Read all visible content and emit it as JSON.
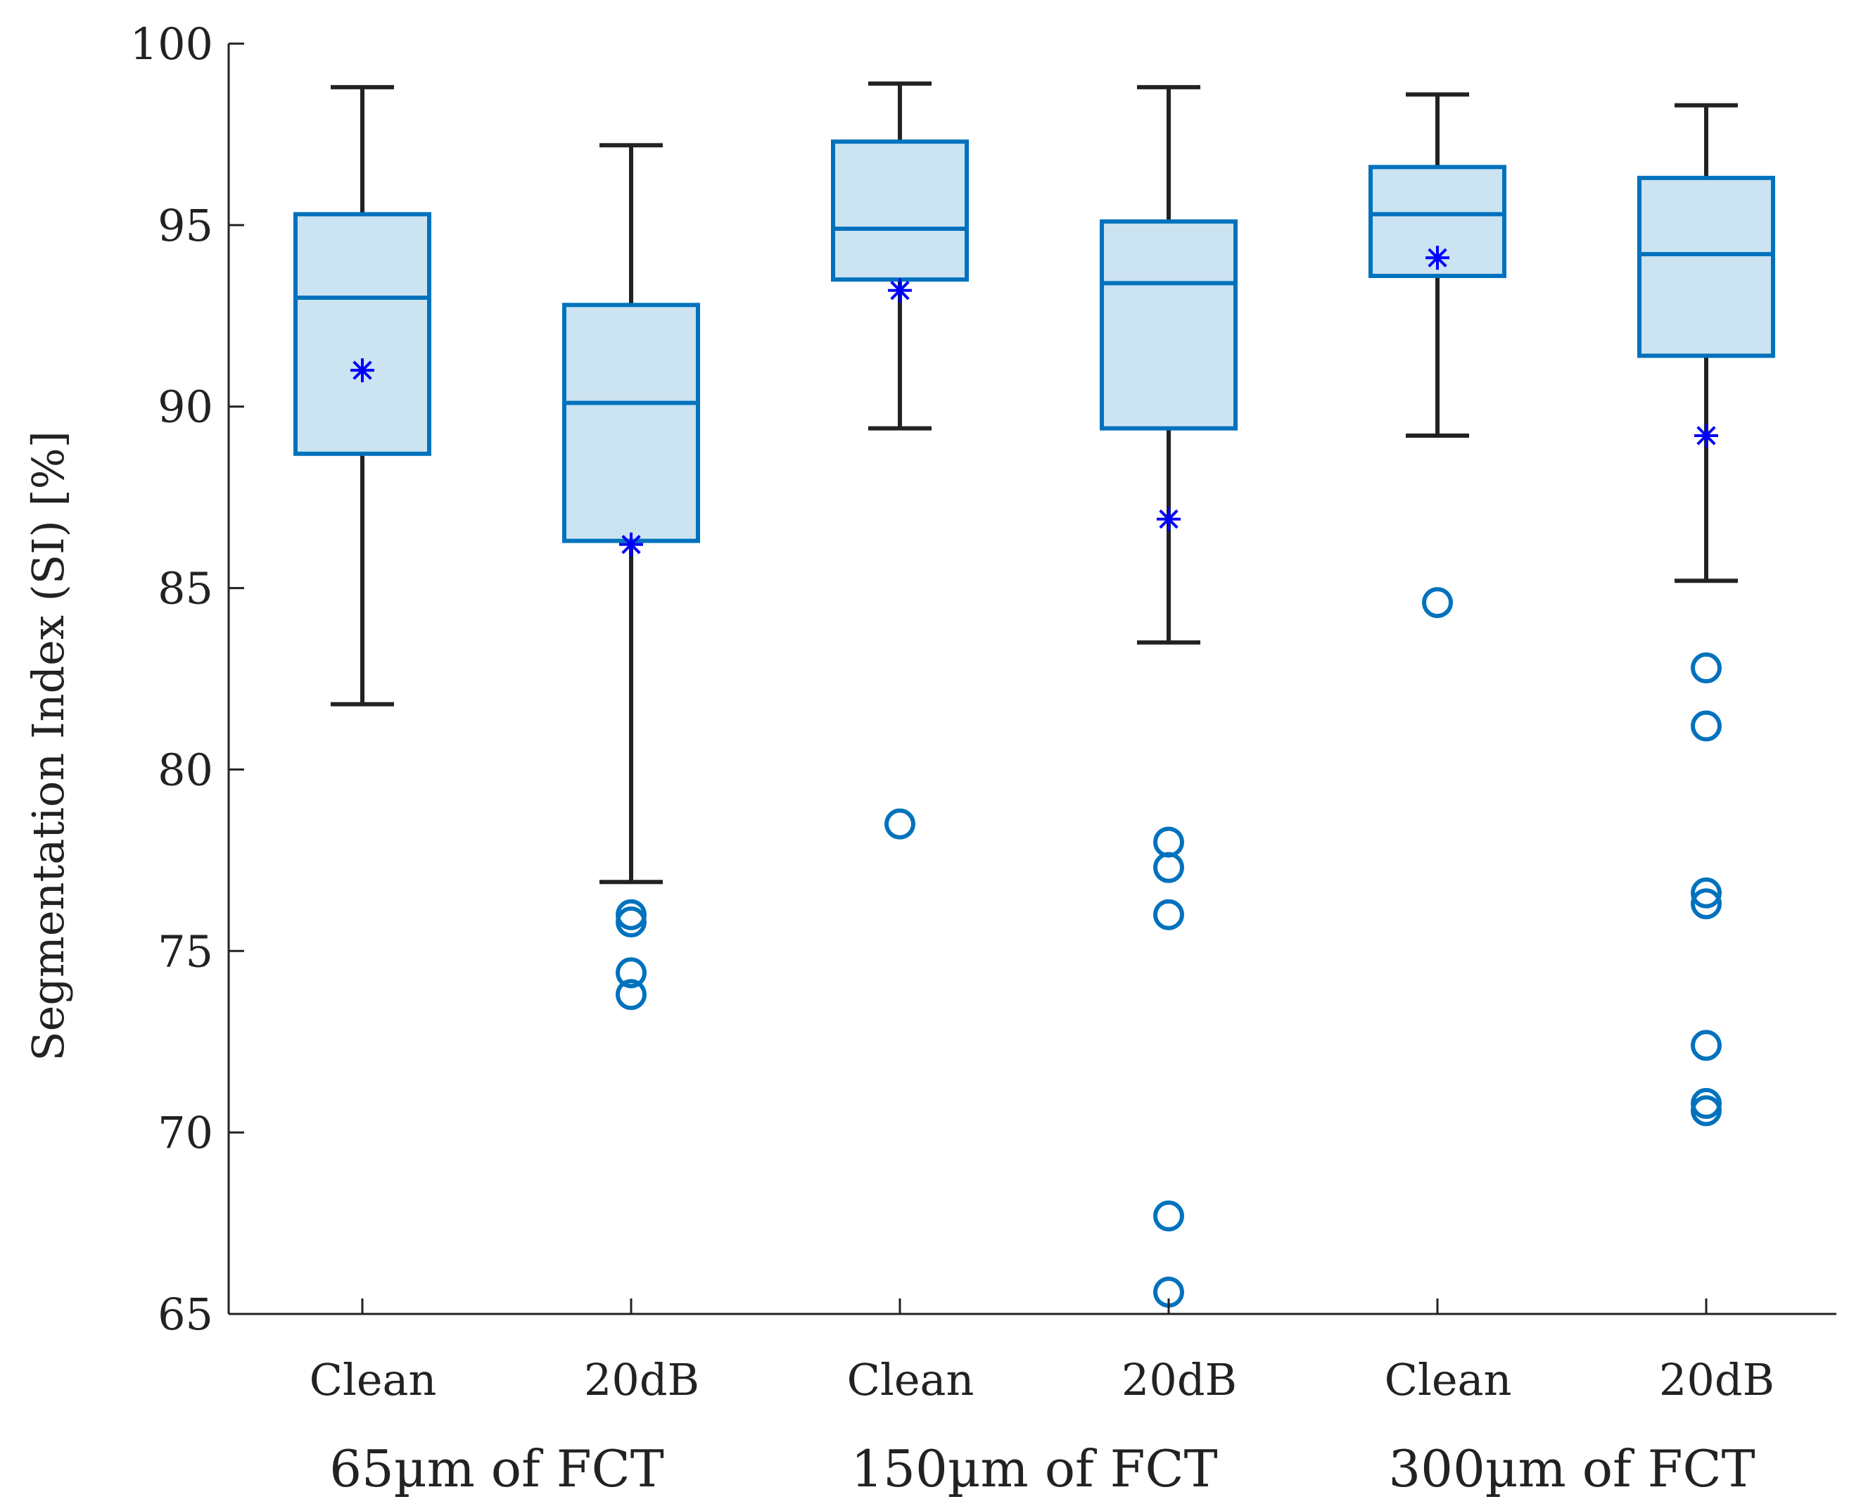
{
  "colors": {
    "box_edge": "#0072BD",
    "box_fill": "#CCE3F2",
    "whisker": "#222222",
    "mean_marker": "#0000FF",
    "outlier": "#0072BD",
    "axis": "#222222"
  },
  "chart_data": {
    "type": "box",
    "title": "",
    "xlabel": "",
    "ylabel": "Segmentation Index (SI) [%]",
    "ylim": [
      65,
      100
    ],
    "yticks": [
      65,
      70,
      75,
      80,
      85,
      90,
      95,
      100
    ],
    "ytick_labels": [
      "65",
      "70",
      "75",
      "80",
      "85",
      "90",
      "95",
      "100"
    ],
    "grid": false,
    "categories": [
      "Clean",
      "20dB",
      "Clean",
      "20dB",
      "Clean",
      "20dB"
    ],
    "groups": [
      {
        "label": "65µm of FCT",
        "span": [
          0,
          1
        ]
      },
      {
        "label": "150µm of FCT",
        "span": [
          2,
          3
        ]
      },
      {
        "label": "300µm of FCT",
        "span": [
          4,
          5
        ]
      }
    ],
    "boxes": [
      {
        "category": "Clean",
        "whisker_low": 81.8,
        "q1": 88.7,
        "median": 93.0,
        "q3": 95.3,
        "whisker_high": 98.8,
        "mean": 91.0,
        "outliers": []
      },
      {
        "category": "20dB",
        "whisker_low": 76.9,
        "q1": 86.3,
        "median": 90.1,
        "q3": 92.8,
        "whisker_high": 97.2,
        "mean": 86.2,
        "outliers": [
          76.0,
          75.8,
          74.4,
          73.8
        ]
      },
      {
        "category": "Clean",
        "whisker_low": 89.4,
        "q1": 93.5,
        "median": 94.9,
        "q3": 97.3,
        "whisker_high": 98.9,
        "mean": 93.2,
        "outliers": [
          78.5
        ]
      },
      {
        "category": "20dB",
        "whisker_low": 83.5,
        "q1": 89.4,
        "median": 93.4,
        "q3": 95.1,
        "whisker_high": 98.8,
        "mean": 86.9,
        "outliers": [
          78.0,
          77.3,
          76.0,
          67.7,
          65.6
        ]
      },
      {
        "category": "Clean",
        "whisker_low": 89.2,
        "q1": 93.6,
        "median": 95.3,
        "q3": 96.6,
        "whisker_high": 98.6,
        "mean": 94.1,
        "outliers": [
          84.6
        ]
      },
      {
        "category": "20dB",
        "whisker_low": 85.2,
        "q1": 91.4,
        "median": 94.2,
        "q3": 96.3,
        "whisker_high": 98.3,
        "mean": 89.2,
        "outliers": [
          82.8,
          81.2,
          76.6,
          76.3,
          72.4,
          70.8,
          70.6
        ]
      }
    ]
  }
}
